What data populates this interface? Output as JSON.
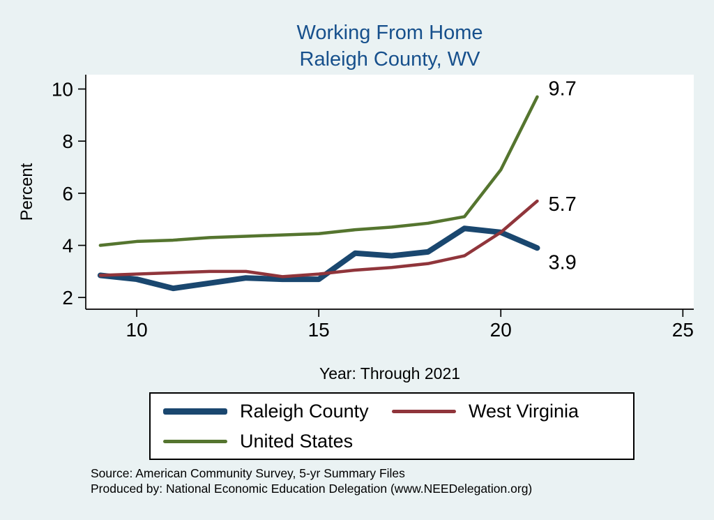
{
  "chart_data": {
    "type": "line",
    "title": "Working From Home",
    "subtitle": "Raleigh County, WV",
    "xlabel": "Year: Through 2021",
    "ylabel": "Percent",
    "x_ticks": [
      10,
      15,
      20,
      25
    ],
    "y_ticks": [
      2,
      4,
      6,
      8,
      10
    ],
    "xlim": [
      8.6,
      25.3
    ],
    "ylim": [
      1.55,
      10.55
    ],
    "grid": false,
    "legend_position": "bottom",
    "x": [
      9,
      10,
      11,
      12,
      13,
      14,
      15,
      16,
      17,
      18,
      19,
      20,
      21
    ],
    "series": [
      {
        "name": "Raleigh County",
        "color": "#1a476f",
        "width": 8,
        "values": [
          2.85,
          2.7,
          2.35,
          2.55,
          2.75,
          2.7,
          2.7,
          3.7,
          3.6,
          3.75,
          4.65,
          4.5,
          3.9
        ],
        "end_label": "3.9"
      },
      {
        "name": "West Virginia",
        "color": "#90353b",
        "width": 4.5,
        "values": [
          2.85,
          2.9,
          2.95,
          3.0,
          3.0,
          2.8,
          2.9,
          3.05,
          3.15,
          3.3,
          3.6,
          4.5,
          5.7
        ],
        "end_label": "5.7"
      },
      {
        "name": "United States",
        "color": "#55752f",
        "width": 4.5,
        "values": [
          4.0,
          4.15,
          4.2,
          4.3,
          4.35,
          4.4,
          4.45,
          4.6,
          4.7,
          4.85,
          5.1,
          6.9,
          9.7
        ],
        "end_label": "9.7"
      }
    ]
  },
  "notes": {
    "source": "Source: American Community Survey, 5-yr Summary Files",
    "produced_by": "Produced by: National Economic Education Delegation (www.NEEDelegation.org)"
  },
  "colors": {
    "background": "#eaf2f3",
    "plot_background": "#ffffff",
    "axis": "#000000",
    "title": "#17508c",
    "text": "#000000",
    "legend_border": "#000000"
  }
}
